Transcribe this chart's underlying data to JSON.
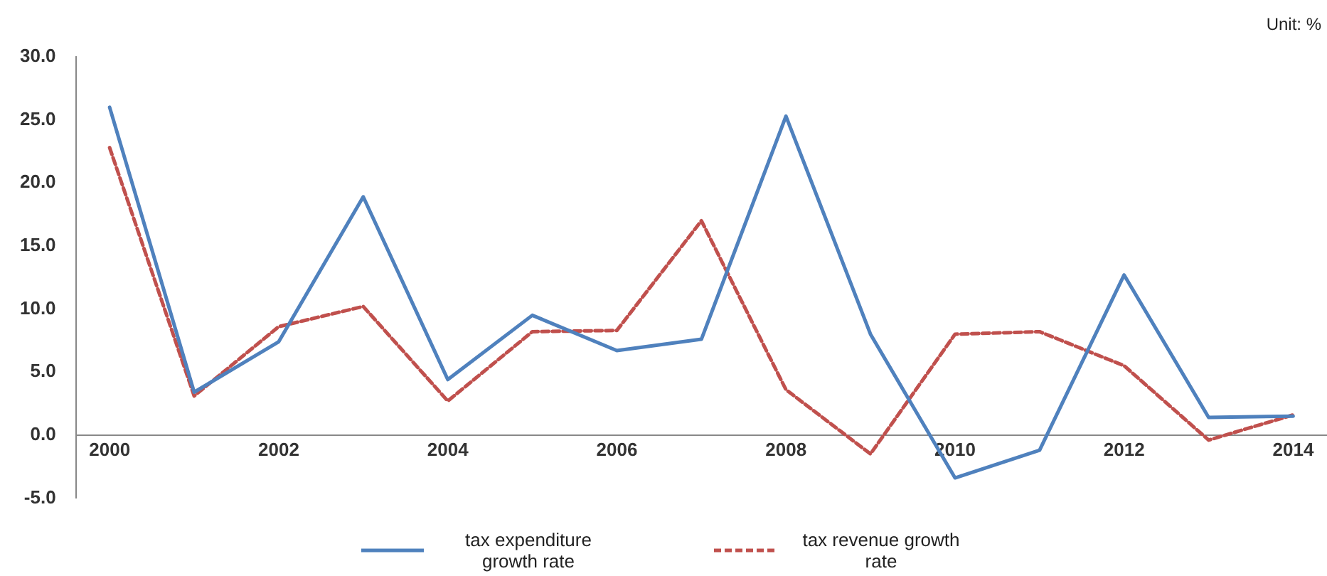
{
  "chart_data": {
    "type": "line",
    "x": [
      2000,
      2001,
      2002,
      2003,
      2004,
      2005,
      2006,
      2007,
      2008,
      2009,
      2010,
      2011,
      2012,
      2013,
      2014
    ],
    "series": [
      {
        "name": "tax expenditure growth rate",
        "color": "#4f81bd",
        "line_style": "solid",
        "values": [
          26.0,
          3.4,
          7.4,
          18.9,
          4.4,
          9.5,
          6.7,
          7.6,
          25.3,
          8.0,
          -3.4,
          -1.2,
          12.7,
          1.4,
          1.5
        ]
      },
      {
        "name": "tax revenue growth rate",
        "color": "#c0504d",
        "line_style": "dashed",
        "values": [
          22.8,
          3.1,
          8.6,
          10.2,
          2.7,
          8.2,
          8.3,
          17.0,
          3.6,
          -1.5,
          8.0,
          8.2,
          5.5,
          -0.4,
          1.6
        ]
      }
    ],
    "xlim": [
      1999.6,
      2014.4
    ],
    "xticks": [
      2000,
      2002,
      2004,
      2006,
      2008,
      2010,
      2012,
      2014
    ],
    "ylim": [
      -5,
      30
    ],
    "yticks": [
      {
        "value": -5,
        "label": "-5.0"
      },
      {
        "value": 0,
        "label": "0.0"
      },
      {
        "value": 5,
        "label": "5.0"
      },
      {
        "value": 10,
        "label": "10.0"
      },
      {
        "value": 15,
        "label": "15.0"
      },
      {
        "value": 20,
        "label": "20.0"
      },
      {
        "value": 25,
        "label": "25.0"
      },
      {
        "value": 30,
        "label": "30.0"
      }
    ],
    "grid": false,
    "legend": "bottom",
    "marker": "none",
    "annotations": [
      "Unit: %"
    ]
  }
}
